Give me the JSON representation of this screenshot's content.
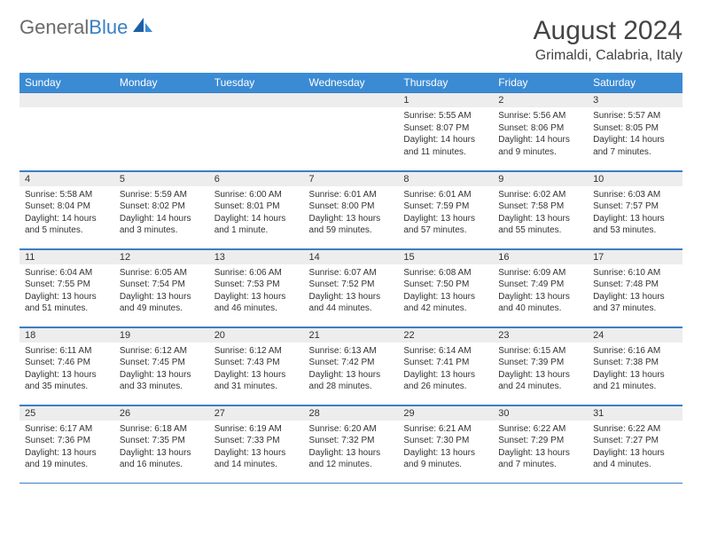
{
  "logo": {
    "text_gray": "General",
    "text_blue": "Blue"
  },
  "title": "August 2024",
  "location": "Grimaldi, Calabria, Italy",
  "colors": {
    "header_bg": "#3b8bd4",
    "header_text": "#ffffff",
    "grid_line": "#3b7fc4",
    "daynum_bg": "#ededed",
    "text": "#333333",
    "logo_gray": "#6b6b6b",
    "logo_blue": "#3b7fc4"
  },
  "weekdays": [
    "Sunday",
    "Monday",
    "Tuesday",
    "Wednesday",
    "Thursday",
    "Friday",
    "Saturday"
  ],
  "weeks": [
    [
      null,
      null,
      null,
      null,
      {
        "d": "1",
        "sr": "5:55 AM",
        "ss": "8:07 PM",
        "dl": "14 hours and 11 minutes."
      },
      {
        "d": "2",
        "sr": "5:56 AM",
        "ss": "8:06 PM",
        "dl": "14 hours and 9 minutes."
      },
      {
        "d": "3",
        "sr": "5:57 AM",
        "ss": "8:05 PM",
        "dl": "14 hours and 7 minutes."
      }
    ],
    [
      {
        "d": "4",
        "sr": "5:58 AM",
        "ss": "8:04 PM",
        "dl": "14 hours and 5 minutes."
      },
      {
        "d": "5",
        "sr": "5:59 AM",
        "ss": "8:02 PM",
        "dl": "14 hours and 3 minutes."
      },
      {
        "d": "6",
        "sr": "6:00 AM",
        "ss": "8:01 PM",
        "dl": "14 hours and 1 minute."
      },
      {
        "d": "7",
        "sr": "6:01 AM",
        "ss": "8:00 PM",
        "dl": "13 hours and 59 minutes."
      },
      {
        "d": "8",
        "sr": "6:01 AM",
        "ss": "7:59 PM",
        "dl": "13 hours and 57 minutes."
      },
      {
        "d": "9",
        "sr": "6:02 AM",
        "ss": "7:58 PM",
        "dl": "13 hours and 55 minutes."
      },
      {
        "d": "10",
        "sr": "6:03 AM",
        "ss": "7:57 PM",
        "dl": "13 hours and 53 minutes."
      }
    ],
    [
      {
        "d": "11",
        "sr": "6:04 AM",
        "ss": "7:55 PM",
        "dl": "13 hours and 51 minutes."
      },
      {
        "d": "12",
        "sr": "6:05 AM",
        "ss": "7:54 PM",
        "dl": "13 hours and 49 minutes."
      },
      {
        "d": "13",
        "sr": "6:06 AM",
        "ss": "7:53 PM",
        "dl": "13 hours and 46 minutes."
      },
      {
        "d": "14",
        "sr": "6:07 AM",
        "ss": "7:52 PM",
        "dl": "13 hours and 44 minutes."
      },
      {
        "d": "15",
        "sr": "6:08 AM",
        "ss": "7:50 PM",
        "dl": "13 hours and 42 minutes."
      },
      {
        "d": "16",
        "sr": "6:09 AM",
        "ss": "7:49 PM",
        "dl": "13 hours and 40 minutes."
      },
      {
        "d": "17",
        "sr": "6:10 AM",
        "ss": "7:48 PM",
        "dl": "13 hours and 37 minutes."
      }
    ],
    [
      {
        "d": "18",
        "sr": "6:11 AM",
        "ss": "7:46 PM",
        "dl": "13 hours and 35 minutes."
      },
      {
        "d": "19",
        "sr": "6:12 AM",
        "ss": "7:45 PM",
        "dl": "13 hours and 33 minutes."
      },
      {
        "d": "20",
        "sr": "6:12 AM",
        "ss": "7:43 PM",
        "dl": "13 hours and 31 minutes."
      },
      {
        "d": "21",
        "sr": "6:13 AM",
        "ss": "7:42 PM",
        "dl": "13 hours and 28 minutes."
      },
      {
        "d": "22",
        "sr": "6:14 AM",
        "ss": "7:41 PM",
        "dl": "13 hours and 26 minutes."
      },
      {
        "d": "23",
        "sr": "6:15 AM",
        "ss": "7:39 PM",
        "dl": "13 hours and 24 minutes."
      },
      {
        "d": "24",
        "sr": "6:16 AM",
        "ss": "7:38 PM",
        "dl": "13 hours and 21 minutes."
      }
    ],
    [
      {
        "d": "25",
        "sr": "6:17 AM",
        "ss": "7:36 PM",
        "dl": "13 hours and 19 minutes."
      },
      {
        "d": "26",
        "sr": "6:18 AM",
        "ss": "7:35 PM",
        "dl": "13 hours and 16 minutes."
      },
      {
        "d": "27",
        "sr": "6:19 AM",
        "ss": "7:33 PM",
        "dl": "13 hours and 14 minutes."
      },
      {
        "d": "28",
        "sr": "6:20 AM",
        "ss": "7:32 PM",
        "dl": "13 hours and 12 minutes."
      },
      {
        "d": "29",
        "sr": "6:21 AM",
        "ss": "7:30 PM",
        "dl": "13 hours and 9 minutes."
      },
      {
        "d": "30",
        "sr": "6:22 AM",
        "ss": "7:29 PM",
        "dl": "13 hours and 7 minutes."
      },
      {
        "d": "31",
        "sr": "6:22 AM",
        "ss": "7:27 PM",
        "dl": "13 hours and 4 minutes."
      }
    ]
  ],
  "labels": {
    "sunrise": "Sunrise:",
    "sunset": "Sunset:",
    "daylight": "Daylight:"
  }
}
